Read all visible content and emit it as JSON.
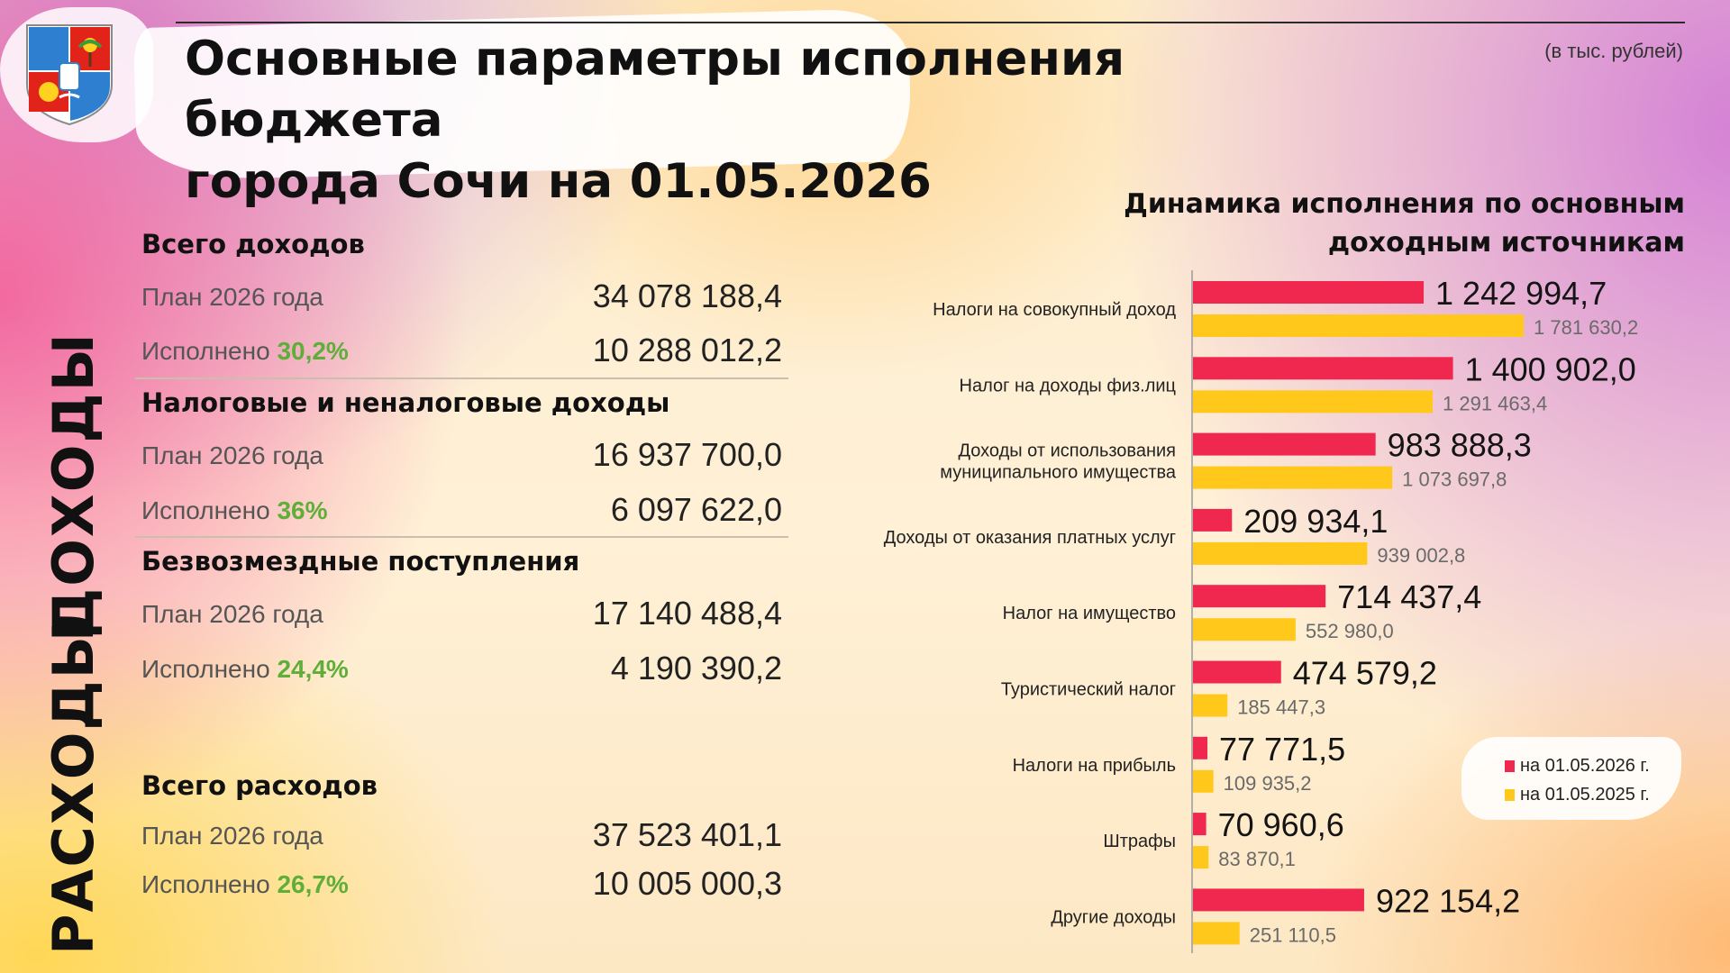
{
  "header": {
    "title_line1": "Основные параметры исполнения бюджета",
    "title_line2": "города Сочи на 01.05.2026",
    "unit_note": "(в тыс. рублей)"
  },
  "side_labels": {
    "income": "ДОХОДЫ",
    "expense": "РАСХОДЫ"
  },
  "summary": {
    "total_income": {
      "title": "Всего доходов",
      "plan_label": "План 2026 года",
      "plan_value": "34 078 188,4",
      "done_label": "Исполнено",
      "done_pct": "30,2%",
      "done_value": "10 288 012,2"
    },
    "tax_income": {
      "title": "Налоговые и неналоговые доходы",
      "plan_label": "План 2026 года",
      "plan_value": "16 937 700,0",
      "done_label": "Исполнено",
      "done_pct": "36%",
      "done_value": "6 097 622,0"
    },
    "grants": {
      "title": "Безвозмездные поступления",
      "plan_label": "План 2026 года",
      "plan_value": "17 140 488,4",
      "done_label": "Исполнено",
      "done_pct": "24,4%",
      "done_value": "4 190 390,2"
    },
    "total_expense": {
      "title": "Всего расходов",
      "plan_label": "План 2026 года",
      "plan_value": "37 523 401,1",
      "done_label": "Исполнено",
      "done_pct": "26,7%",
      "done_value": "10 005 000,3"
    }
  },
  "colors": {
    "series_2026": "#f0284f",
    "series_2025": "#ffc81a",
    "pct_green": "#5fae3a"
  },
  "chart_data": {
    "type": "bar",
    "orientation": "horizontal",
    "title": "Динамика исполнения по основным доходным источникам",
    "title_line1": "Динамика исполнения по основным",
    "title_line2": "доходным источникам",
    "categories": [
      [
        "Налоги на совокупный доход"
      ],
      [
        "Налог на доходы физ.лиц"
      ],
      [
        "Доходы от использования",
        "муниципального имущества"
      ],
      [
        "Доходы от оказания платных услуг"
      ],
      [
        "Налог на имущество"
      ],
      [
        "Туристический налог"
      ],
      [
        "Налоги на прибыль"
      ],
      [
        "Штрафы"
      ],
      [
        "Другие доходы"
      ]
    ],
    "series": [
      {
        "name": "на 01.05.2026 г.",
        "values": [
          1242994.7,
          1400902.0,
          983888.3,
          209934.1,
          714437.4,
          474579.2,
          77771.5,
          70960.6,
          922154.2
        ],
        "labels": [
          "1 242 994,7",
          "1 400 902,0",
          "983 888,3",
          "209 934,1",
          "714 437,4",
          "474 579,2",
          "77 771,5",
          "70 960,6",
          "922 154,2"
        ]
      },
      {
        "name": "на 01.05.2025 г.",
        "values": [
          1781630.2,
          1291463.4,
          1073697.8,
          939002.8,
          552980.0,
          185447.3,
          109935.2,
          83870.1,
          251110.5
        ],
        "labels": [
          "1 781 630,2",
          "1 291 463,4",
          "1 073 697,8",
          "939 002,8",
          "552 980,0",
          "185 447,3",
          "109 935,2",
          "83 870,1",
          "251 110,5"
        ]
      }
    ],
    "legend_position": "bottom-right",
    "grid": false
  }
}
